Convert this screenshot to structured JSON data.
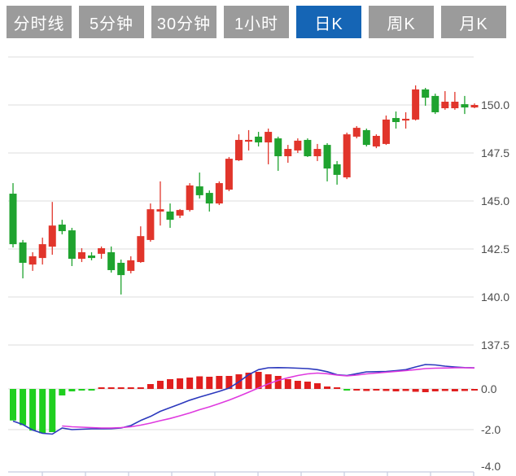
{
  "tabs": {
    "items": [
      {
        "label": "分时线",
        "active": false
      },
      {
        "label": "5分钟",
        "active": false
      },
      {
        "label": "30分钟",
        "active": false
      },
      {
        "label": "1小时",
        "active": false
      },
      {
        "label": "日K",
        "active": true
      },
      {
        "label": "周K",
        "active": false
      },
      {
        "label": "月K",
        "active": false
      }
    ]
  },
  "colors": {
    "tab_bg": "#9b9b9b",
    "tab_active_bg": "#1565b5",
    "tab_text": "#ffffff",
    "candle_up": "#e1352b",
    "candle_down": "#1fa32f",
    "hist_up": "#e01e1e",
    "hist_down": "#1fcf1f",
    "dif_line": "#2b38bd",
    "dea_line": "#df3adf",
    "grid": "#dcdcdc",
    "axis": "#c5cce0",
    "label_text": "#4d4d4d"
  },
  "chart_data": {
    "type": "candlestick",
    "title": "",
    "legend_position": "none",
    "grid": true,
    "panels": [
      {
        "name": "price",
        "ylabels": [
          "150.0",
          "147.5",
          "145.0",
          "142.5",
          "140.0",
          "137.5"
        ],
        "ylim": [
          137.5,
          152.9
        ],
        "candles": [
          [
            145.38,
            145.93,
            142.58,
            142.75
          ],
          [
            142.84,
            142.97,
            140.97,
            141.78
          ],
          [
            141.69,
            142.33,
            141.36,
            142.12
          ],
          [
            142.03,
            143.09,
            141.69,
            142.75
          ],
          [
            142.62,
            144.95,
            142.2,
            143.72
          ],
          [
            143.77,
            144.02,
            143.26,
            143.43
          ],
          [
            143.47,
            143.6,
            141.61,
            141.99
          ],
          [
            141.99,
            142.54,
            141.82,
            142.33
          ],
          [
            142.16,
            142.33,
            141.91,
            142.03
          ],
          [
            142.25,
            142.63,
            141.99,
            142.54
          ],
          [
            142.33,
            142.63,
            141.27,
            141.4
          ],
          [
            141.78,
            141.95,
            140.13,
            141.14
          ],
          [
            141.36,
            142.12,
            141.23,
            141.91
          ],
          [
            141.82,
            143.68,
            141.78,
            143.17
          ],
          [
            142.97,
            144.87,
            142.88,
            144.57
          ],
          [
            144.45,
            146.02,
            143.72,
            144.57
          ],
          [
            144.45,
            144.87,
            143.6,
            144.02
          ],
          [
            144.24,
            144.58,
            144.11,
            144.53
          ],
          [
            144.53,
            145.93,
            144.45,
            145.81
          ],
          [
            145.76,
            146.48,
            145.13,
            145.3
          ],
          [
            145.42,
            145.55,
            144.45,
            144.87
          ],
          [
            144.87,
            146.02,
            144.79,
            145.93
          ],
          [
            145.59,
            147.29,
            145.51,
            147.2
          ],
          [
            147.12,
            148.47,
            147.08,
            148.18
          ],
          [
            148.09,
            148.69,
            147.63,
            148.18
          ],
          [
            148.35,
            148.6,
            147.84,
            148.05
          ],
          [
            148.05,
            148.77,
            146.91,
            148.6
          ],
          [
            148.26,
            148.35,
            146.57,
            147.33
          ],
          [
            147.33,
            147.92,
            146.99,
            147.71
          ],
          [
            147.63,
            148.26,
            147.5,
            148.14
          ],
          [
            148.18,
            148.26,
            147.29,
            147.33
          ],
          [
            147.33,
            147.97,
            147.08,
            147.71
          ],
          [
            147.92,
            148.01,
            146.02,
            146.69
          ],
          [
            146.91,
            147.08,
            145.85,
            146.36
          ],
          [
            146.23,
            148.56,
            146.14,
            148.47
          ],
          [
            148.35,
            148.9,
            148.26,
            148.81
          ],
          [
            148.69,
            148.77,
            147.84,
            147.92
          ],
          [
            147.84,
            148.47,
            147.75,
            148.39
          ],
          [
            147.97,
            149.45,
            147.92,
            149.24
          ],
          [
            149.32,
            149.66,
            148.77,
            149.11
          ],
          [
            149.19,
            149.62,
            148.77,
            149.28
          ],
          [
            149.24,
            151.02,
            149.19,
            150.81
          ],
          [
            150.81,
            150.89,
            149.96,
            150.38
          ],
          [
            150.47,
            150.59,
            149.53,
            149.62
          ],
          [
            149.83,
            150.72,
            149.75,
            150.17
          ],
          [
            149.83,
            150.68,
            149.75,
            150.17
          ],
          [
            150.04,
            150.47,
            149.53,
            149.87
          ],
          [
            149.87,
            150.08,
            149.83,
            150.0
          ]
        ]
      },
      {
        "name": "macd",
        "ylabels": [
          "0.0",
          "-2.0",
          "-4.0"
        ],
        "ylim": [
          -4.0,
          1.3
        ],
        "hist": [
          -1.55,
          -1.78,
          -2.05,
          -2.18,
          -2.12,
          -0.32,
          -0.12,
          -0.08,
          -0.06,
          0.06,
          0.05,
          0.06,
          0.06,
          0.08,
          0.24,
          0.4,
          0.48,
          0.52,
          0.56,
          0.62,
          0.6,
          0.64,
          0.64,
          0.72,
          0.8,
          0.84,
          0.72,
          0.64,
          0.48,
          0.4,
          0.36,
          0.28,
          0.12,
          0.08,
          -0.06,
          -0.08,
          -0.1,
          -0.08,
          -0.1,
          -0.12,
          -0.1,
          -0.14,
          -0.16,
          -0.12,
          -0.1,
          -0.12,
          -0.1,
          -0.08
        ],
        "hist_colors": "gggggggggrrrrrrrrrrrrrrrrrrrrrrrrrgrrrrrrrrrrrrr",
        "dif": [
          -1.58,
          -1.75,
          -2.02,
          -2.18,
          -2.22,
          -1.92,
          -2.0,
          -1.98,
          -1.96,
          -1.96,
          -1.95,
          -1.92,
          -1.8,
          -1.55,
          -1.35,
          -1.1,
          -0.92,
          -0.74,
          -0.55,
          -0.4,
          -0.26,
          -0.12,
          0.04,
          0.35,
          0.7,
          0.95,
          1.04,
          1.05,
          1.04,
          1.02,
          1.0,
          0.95,
          0.85,
          0.7,
          0.66,
          0.75,
          0.84,
          0.85,
          0.86,
          0.9,
          0.95,
          1.08,
          1.2,
          1.18,
          1.12,
          1.08,
          1.05,
          1.04
        ],
        "dea": [
          null,
          null,
          null,
          null,
          null,
          -1.82,
          -1.86,
          -1.88,
          -1.9,
          -1.92,
          -1.92,
          -1.9,
          -1.86,
          -1.78,
          -1.68,
          -1.56,
          -1.45,
          -1.32,
          -1.18,
          -1.02,
          -0.88,
          -0.72,
          -0.55,
          -0.36,
          -0.16,
          0.05,
          0.25,
          0.42,
          0.55,
          0.66,
          0.74,
          0.78,
          0.75,
          0.68,
          0.64,
          0.68,
          0.74,
          0.78,
          0.82,
          0.86,
          0.9,
          0.95,
          1.0,
          1.02,
          1.03,
          1.04,
          1.04,
          1.03
        ]
      }
    ]
  }
}
